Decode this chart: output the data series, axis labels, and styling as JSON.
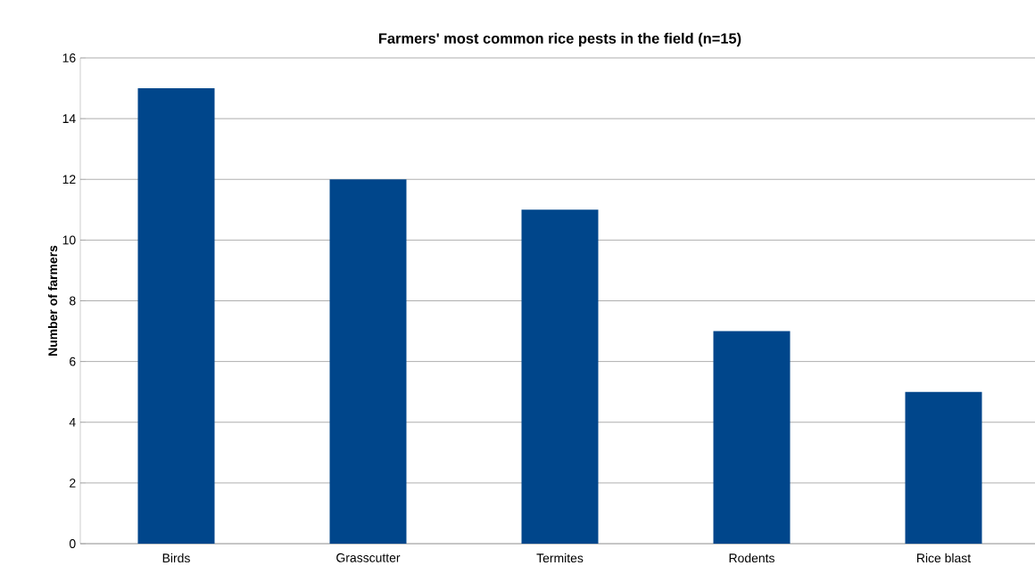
{
  "chart_data": {
    "type": "bar",
    "title": "Farmers' most common rice pests in the field (n=15)",
    "ylabel": "Number of farmers",
    "categories": [
      "Birds",
      "Grasscutter",
      "Termites",
      "Rodents",
      "Rice blast"
    ],
    "values": [
      15,
      12,
      11,
      7,
      5
    ],
    "color": "#00468b",
    "ylim": [
      0,
      16
    ],
    "yticks": [
      0,
      2,
      4,
      6,
      8,
      10,
      12,
      14,
      16
    ],
    "grid": "y"
  }
}
